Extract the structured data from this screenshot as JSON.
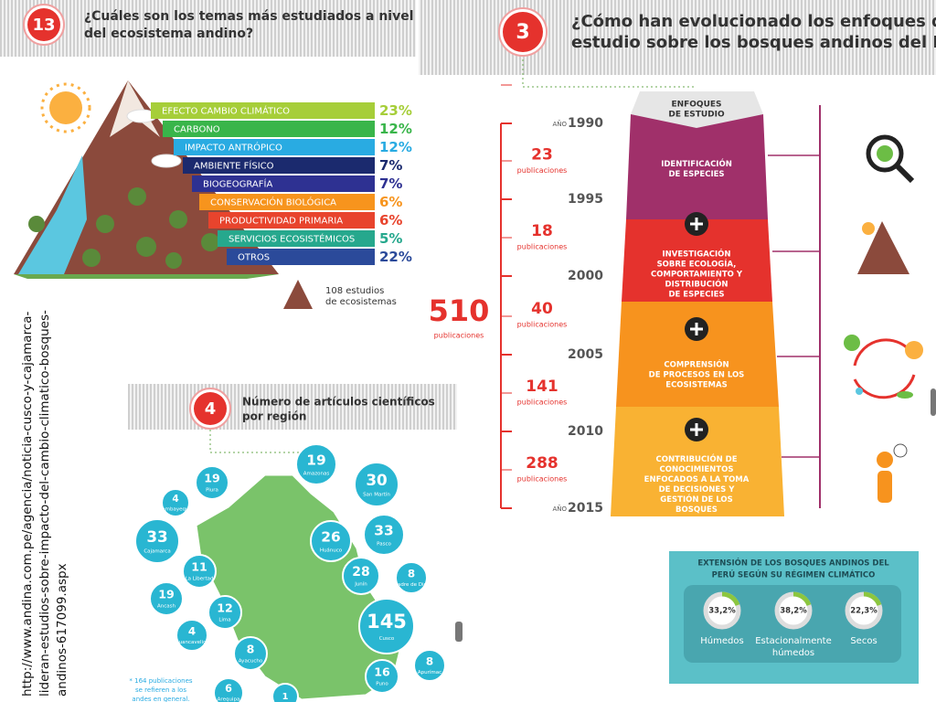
{
  "source_url": [
    "http://www.andina.com.pe/agencia/noticia-cusco-y-cajamarca-",
    "lideran-estudios-sobre-impacto-del-cambio-climatico-bosques-",
    "andinos-617099.aspx"
  ],
  "panel_13": {
    "number": "13",
    "title": [
      "¿Cuáles son los temas más estudiados a nivel",
      "del ecosistema andino?"
    ],
    "topics": [
      {
        "label": "EFECTO CAMBIO CLIMÁTICO",
        "share": "23%"
      },
      {
        "label": "CARBONO",
        "share": "12%"
      },
      {
        "label": "IMPACTO ANTRÓPICO",
        "share": "12%"
      },
      {
        "label": "AMBIENTE FÍSICO",
        "share": "7%"
      },
      {
        "label": "BIOGEOGRAFÍA",
        "share": "7%"
      },
      {
        "label": "CONSERVACIÓN BIOLÓGICA",
        "share": "6%"
      },
      {
        "label": "PRODUCTIVIDAD PRIMARIA",
        "share": "6%"
      },
      {
        "label": "SERVICIOS ECOSISTÉMICOS",
        "share": "5%"
      },
      {
        "label": "OTROS",
        "share": "22%"
      }
    ],
    "legend": [
      "108 estudios",
      "de ecosistemas"
    ]
  },
  "panel_3": {
    "number": "3",
    "title": [
      "¿Cómo han evolucionado los enfoques de",
      "estudio sobre los bosques andinos del Perú?"
    ],
    "header": [
      "ENFOQUES",
      "DE ESTUDIO"
    ],
    "total": "510",
    "total_label": "publicaciones",
    "years": [
      {
        "prefix": "AÑO",
        "year": "1990"
      },
      {
        "year": "1995"
      },
      {
        "year": "2000"
      },
      {
        "year": "2005"
      },
      {
        "year": "2010"
      },
      {
        "prefix": "AÑO",
        "year": "2015"
      }
    ],
    "periods": [
      {
        "count": "23",
        "label": "publicaciones"
      },
      {
        "count": "18",
        "label": "publicaciones"
      },
      {
        "count": "40",
        "label": "publicaciones"
      },
      {
        "count": "141",
        "label": "publicaciones"
      },
      {
        "count": "288",
        "label": "publicaciones"
      }
    ],
    "stages": [
      [
        "IDENTIFICACIÓN",
        "DE ESPECIES"
      ],
      [
        "INVESTIGACIÓN",
        "SOBRE ECOLOGÍA,",
        "COMPORTAMIENTO Y",
        "DISTRIBUCIÓN",
        "DE ESPECIES"
      ],
      [
        "COMPRENSIÓN",
        "DE PROCESOS EN LOS",
        "ECOSISTEMAS"
      ],
      [
        "CONTRIBUCIÓN DE",
        "CONOCIMIENTOS",
        "ENFOCADOS A LA TOMA",
        "DE DECISIONES Y",
        "GESTIÓN DE LOS",
        "BOSQUES"
      ]
    ],
    "climate": {
      "title": [
        "EXTENSIÓN DE LOS BOSQUES ANDINOS DEL",
        "PERÚ SEGÚN SU RÉGIMEN CLIMÁTICO"
      ],
      "items": [
        {
          "share": "33,2%",
          "label": [
            "Húmedos"
          ]
        },
        {
          "share": "38,2%",
          "label": [
            "Estacionalmente",
            "húmedos"
          ]
        },
        {
          "share": "22,3%",
          "label": [
            "Secos"
          ]
        }
      ]
    }
  },
  "panel_4": {
    "number": "4",
    "title": [
      "Número de artículos científicos",
      "por región"
    ],
    "regions": [
      {
        "count": "19",
        "name": "Amazonas"
      },
      {
        "count": "30",
        "name": "San Martín"
      },
      {
        "count": "19",
        "name": "Piura"
      },
      {
        "count": "4",
        "name": "Lambayeque"
      },
      {
        "count": "33",
        "name": "Cajamarca"
      },
      {
        "count": "11",
        "name": "La Libertad"
      },
      {
        "count": "26",
        "name": "Huánuco"
      },
      {
        "count": "33",
        "name": "Pasco"
      },
      {
        "count": "28",
        "name": "Junín"
      },
      {
        "count": "8",
        "name": "Madre de Dios"
      },
      {
        "count": "19",
        "name": "Ancash"
      },
      {
        "count": "12",
        "name": "Lima"
      },
      {
        "count": "145",
        "name": "Cusco"
      },
      {
        "count": "4",
        "name": "Huancavelica"
      },
      {
        "count": "8",
        "name": "Ayacucho"
      },
      {
        "count": "8",
        "name": "Apurímac"
      },
      {
        "count": "16",
        "name": "Puno"
      },
      {
        "count": "6",
        "name": "Arequipa"
      },
      {
        "count": "1"
      }
    ],
    "footnote": [
      "* 164 publicaciones",
      "se refieren a los",
      "andes en general."
    ]
  }
}
